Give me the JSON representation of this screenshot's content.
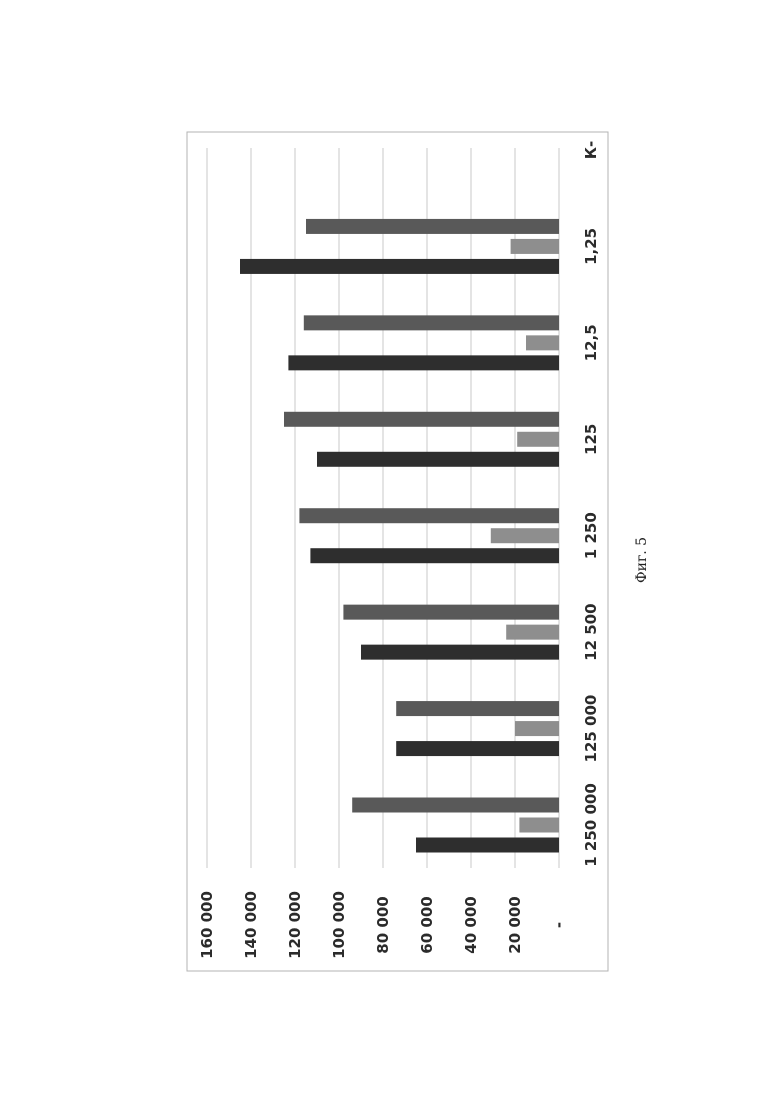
{
  "caption": "Фиг. 5",
  "colors": {
    "series_1": "#2e2e2e",
    "series_2": "#8e8e8e",
    "series_3": "#595959",
    "grid": "#c8c8c8",
    "frame": "#b3b3b3"
  },
  "chart_data": {
    "type": "bar",
    "orientation": "rotated-90-degrees",
    "title": "",
    "xlabel": "",
    "ylabel": "",
    "ylim": [
      0,
      160000
    ],
    "grid": true,
    "legend": "none",
    "y_tick_labels": [
      "-",
      "20 000",
      "40 000",
      "60 000",
      "80 000",
      "100 000",
      "120 000",
      "140 000",
      "160 000"
    ],
    "y_tick_values": [
      0,
      20000,
      40000,
      60000,
      80000,
      100000,
      120000,
      140000,
      160000
    ],
    "categories": [
      "1 250 000",
      "125 000",
      "12 500",
      "1 250",
      "125",
      "12,5",
      "1,25",
      "К-"
    ],
    "series": [
      {
        "values": [
          65000,
          74000,
          90000,
          113000,
          110000,
          123000,
          145000,
          null
        ]
      },
      {
        "values": [
          18000,
          20000,
          24000,
          31000,
          19000,
          15000,
          22000,
          null
        ]
      },
      {
        "values": [
          94000,
          74000,
          98000,
          118000,
          125000,
          116000,
          115000,
          null
        ]
      }
    ]
  }
}
